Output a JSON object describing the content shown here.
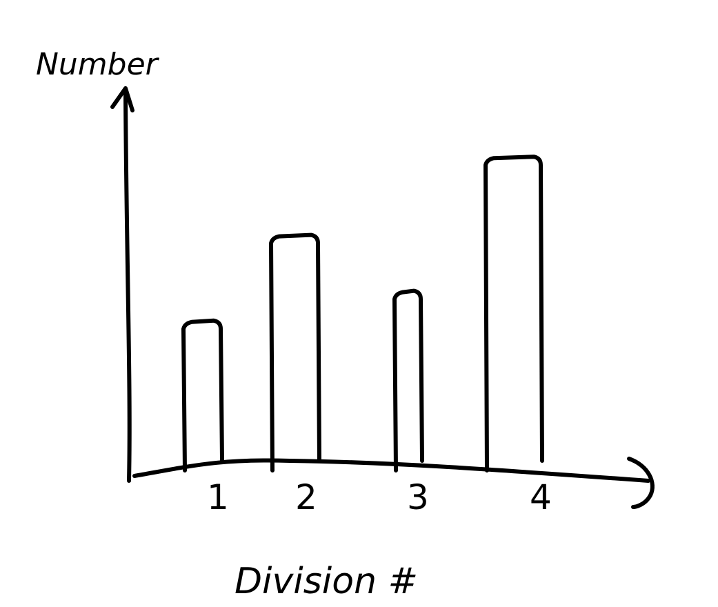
{
  "chart_data": {
    "type": "bar",
    "title": "",
    "xlabel": "Division #",
    "ylabel": "Number",
    "categories": [
      "1",
      "2",
      "3",
      "4"
    ],
    "values": [
      38,
      61,
      46,
      82
    ],
    "ylim": [
      0,
      100
    ],
    "grid": false,
    "legend": "none",
    "style": "hand-drawn"
  }
}
